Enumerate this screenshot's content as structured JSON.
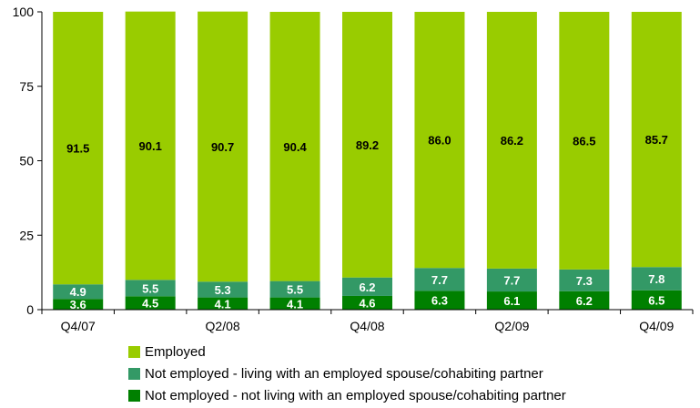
{
  "chart_data": {
    "type": "bar",
    "stacked": true,
    "categories": [
      "Q4/07",
      "",
      "Q2/08",
      "",
      "Q4/08",
      "",
      "Q2/09",
      "",
      "Q4/09"
    ],
    "ylim": [
      0,
      100
    ],
    "yticks": [
      0,
      25,
      50,
      75,
      100
    ],
    "grid": false,
    "legend_placement": "bottom",
    "series": [
      {
        "name": "Not employed - not living with an employed spouse/cohabiting partner",
        "color": "#008000",
        "values": [
          3.6,
          4.5,
          4.1,
          4.1,
          4.6,
          6.3,
          6.1,
          6.2,
          6.5
        ]
      },
      {
        "name": "Not employed - living with an employed spouse/cohabiting partner",
        "color": "#339966",
        "values": [
          4.9,
          5.5,
          5.3,
          5.5,
          6.2,
          7.7,
          7.7,
          7.3,
          7.8
        ]
      },
      {
        "name": "Employed",
        "color": "#99CC00",
        "values": [
          91.5,
          90.1,
          90.7,
          90.4,
          89.2,
          86.0,
          86.2,
          86.5,
          85.7
        ]
      }
    ]
  }
}
